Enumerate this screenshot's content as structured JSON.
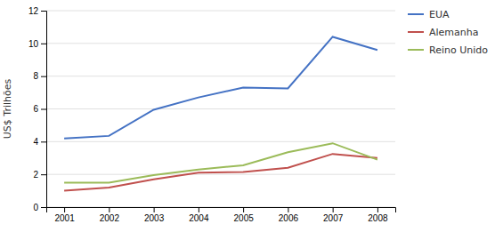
{
  "chart_data": {
    "type": "line",
    "ylabel": "US$ Trilhões",
    "x": [
      2001,
      2002,
      2003,
      2004,
      2005,
      2006,
      2007,
      2008
    ],
    "xlim": [
      2000.6,
      2008.4
    ],
    "xticks": [
      2001,
      2002,
      2003,
      2004,
      2005,
      2006,
      2007,
      2008
    ],
    "ylim": [
      0,
      12
    ],
    "yticks": [
      0,
      2,
      4,
      6,
      8,
      10,
      12
    ],
    "grid": true,
    "legend": "right",
    "series": [
      {
        "name": "EUA",
        "color": "#4472C4",
        "values": [
          4.2,
          4.35,
          5.95,
          6.7,
          7.3,
          7.25,
          10.4,
          9.6
        ]
      },
      {
        "name": "Alemanha",
        "color": "#C0504D",
        "values": [
          1.0,
          1.2,
          1.7,
          2.1,
          2.15,
          2.4,
          3.25,
          3.0
        ]
      },
      {
        "name": "Reino Unido",
        "color": "#9BBB59",
        "values": [
          1.5,
          1.5,
          1.95,
          2.3,
          2.55,
          3.35,
          3.9,
          2.9
        ]
      }
    ]
  }
}
